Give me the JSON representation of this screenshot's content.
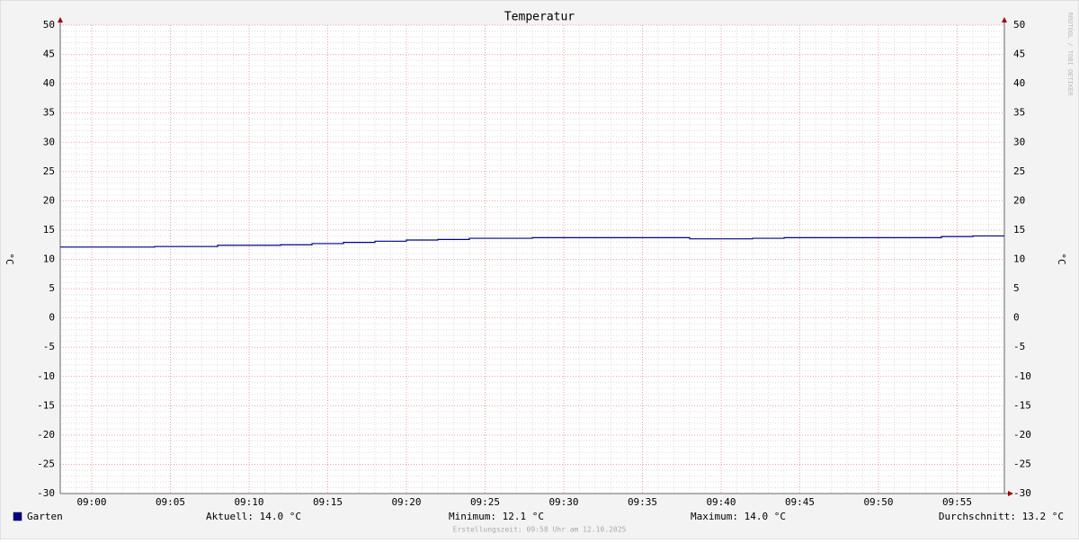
{
  "chart_data": {
    "type": "line",
    "title": "Temperatur",
    "y_label": "°C",
    "y2_label": "°C",
    "xlim": [
      538,
      598
    ],
    "xticks": [
      {
        "value": 540,
        "label": "09:00"
      },
      {
        "value": 545,
        "label": "09:05"
      },
      {
        "value": 550,
        "label": "09:10"
      },
      {
        "value": 555,
        "label": "09:15"
      },
      {
        "value": 560,
        "label": "09:20"
      },
      {
        "value": 565,
        "label": "09:25"
      },
      {
        "value": 570,
        "label": "09:30"
      },
      {
        "value": 575,
        "label": "09:35"
      },
      {
        "value": 580,
        "label": "09:40"
      },
      {
        "value": 585,
        "label": "09:45"
      },
      {
        "value": 590,
        "label": "09:50"
      },
      {
        "value": 595,
        "label": "09:55"
      }
    ],
    "ylim": [
      -30,
      50
    ],
    "yticks": [
      -30,
      -25,
      -20,
      -15,
      -10,
      -5,
      0,
      5,
      10,
      15,
      20,
      25,
      30,
      35,
      40,
      45,
      50
    ],
    "grid": true,
    "x": [
      538,
      544,
      548,
      552,
      554,
      556,
      558,
      560,
      562,
      564,
      568,
      578,
      582,
      584,
      594,
      596,
      598
    ],
    "series": [
      {
        "name": "Garten",
        "color": "#00008b",
        "values": [
          12.1,
          12.2,
          12.4,
          12.5,
          12.7,
          12.9,
          13.1,
          13.3,
          13.4,
          13.6,
          13.7,
          13.5,
          13.6,
          13.7,
          13.9,
          14.0,
          14.0
        ]
      }
    ],
    "stats": [
      "Aktuell: 14.0 °C",
      "Minimum: 12.1 °C",
      "Maximum: 14.0 °C",
      "Durchschnitt: 13.2 °C"
    ],
    "footer": "Erstellungszeit: 09:58 Uhr am 12.10.2025",
    "watermark": "RRDTOOL / TOBI OETIKER"
  }
}
